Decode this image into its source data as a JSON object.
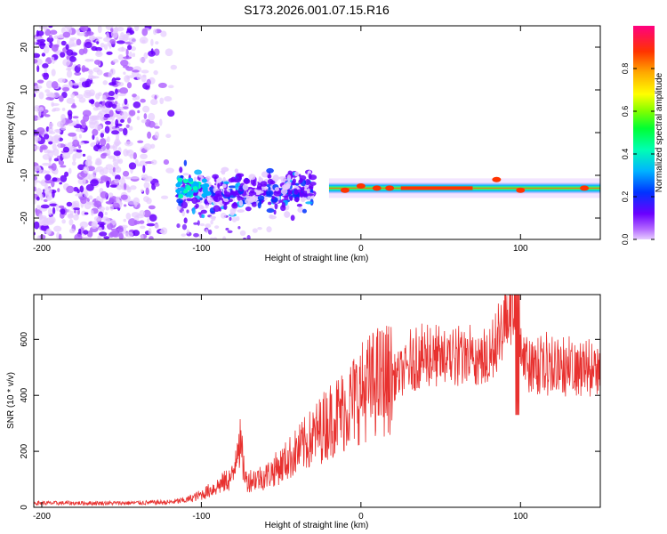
{
  "figure_title": "S173.2026.001.07.15.R16",
  "chart_data": [
    {
      "type": "heatmap",
      "title": "S173.2026.001.07.15.R16",
      "xlabel": "Height of straight line (km)",
      "ylabel": "Frequency (Hz)",
      "xlim": [
        -205,
        150
      ],
      "ylim": [
        -25,
        25
      ],
      "xticks": [
        -200,
        -100,
        0,
        100
      ],
      "yticks": [
        -20,
        -10,
        0,
        10,
        20
      ],
      "colorbar": {
        "label": "Normalized spectral amplitude",
        "range": [
          0,
          1
        ],
        "ticks": [
          0.0,
          0.2,
          0.4,
          0.6,
          0.8
        ]
      },
      "features": [
        {
          "name": "noise",
          "x_range": [
            -205,
            -115
          ],
          "freq_range": [
            -25,
            25
          ],
          "amplitude": 0.1
        },
        {
          "name": "signal-onset",
          "x_range": [
            -115,
            -30
          ],
          "center_freq": -14,
          "amplitude": 0.25
        },
        {
          "name": "carrier",
          "x_range": [
            -20,
            150
          ],
          "center_freq": -13,
          "amplitude_peak": 0.95
        }
      ]
    },
    {
      "type": "line",
      "xlabel": "Height of straight line (km)",
      "ylabel": "SNR (10 * v/v)",
      "xlim": [
        -205,
        150
      ],
      "ylim": [
        0,
        760
      ],
      "xticks": [
        -200,
        -100,
        0,
        100
      ],
      "yticks": [
        0,
        200,
        400,
        600
      ],
      "series": [
        {
          "name": "SNR",
          "color": "#e8312f",
          "x": [
            -205,
            -180,
            -150,
            -120,
            -110,
            -100,
            -90,
            -80,
            -77,
            -72,
            -60,
            -50,
            -40,
            -30,
            -20,
            -10,
            0,
            10,
            20,
            30,
            40,
            60,
            80,
            98,
            100,
            110,
            130,
            150
          ],
          "y": [
            15,
            15,
            15,
            18,
            25,
            45,
            75,
            110,
            265,
            95,
            110,
            150,
            200,
            250,
            310,
            350,
            410,
            450,
            460,
            500,
            520,
            520,
            515,
            760,
            510,
            490,
            480,
            470
          ]
        }
      ]
    }
  ]
}
